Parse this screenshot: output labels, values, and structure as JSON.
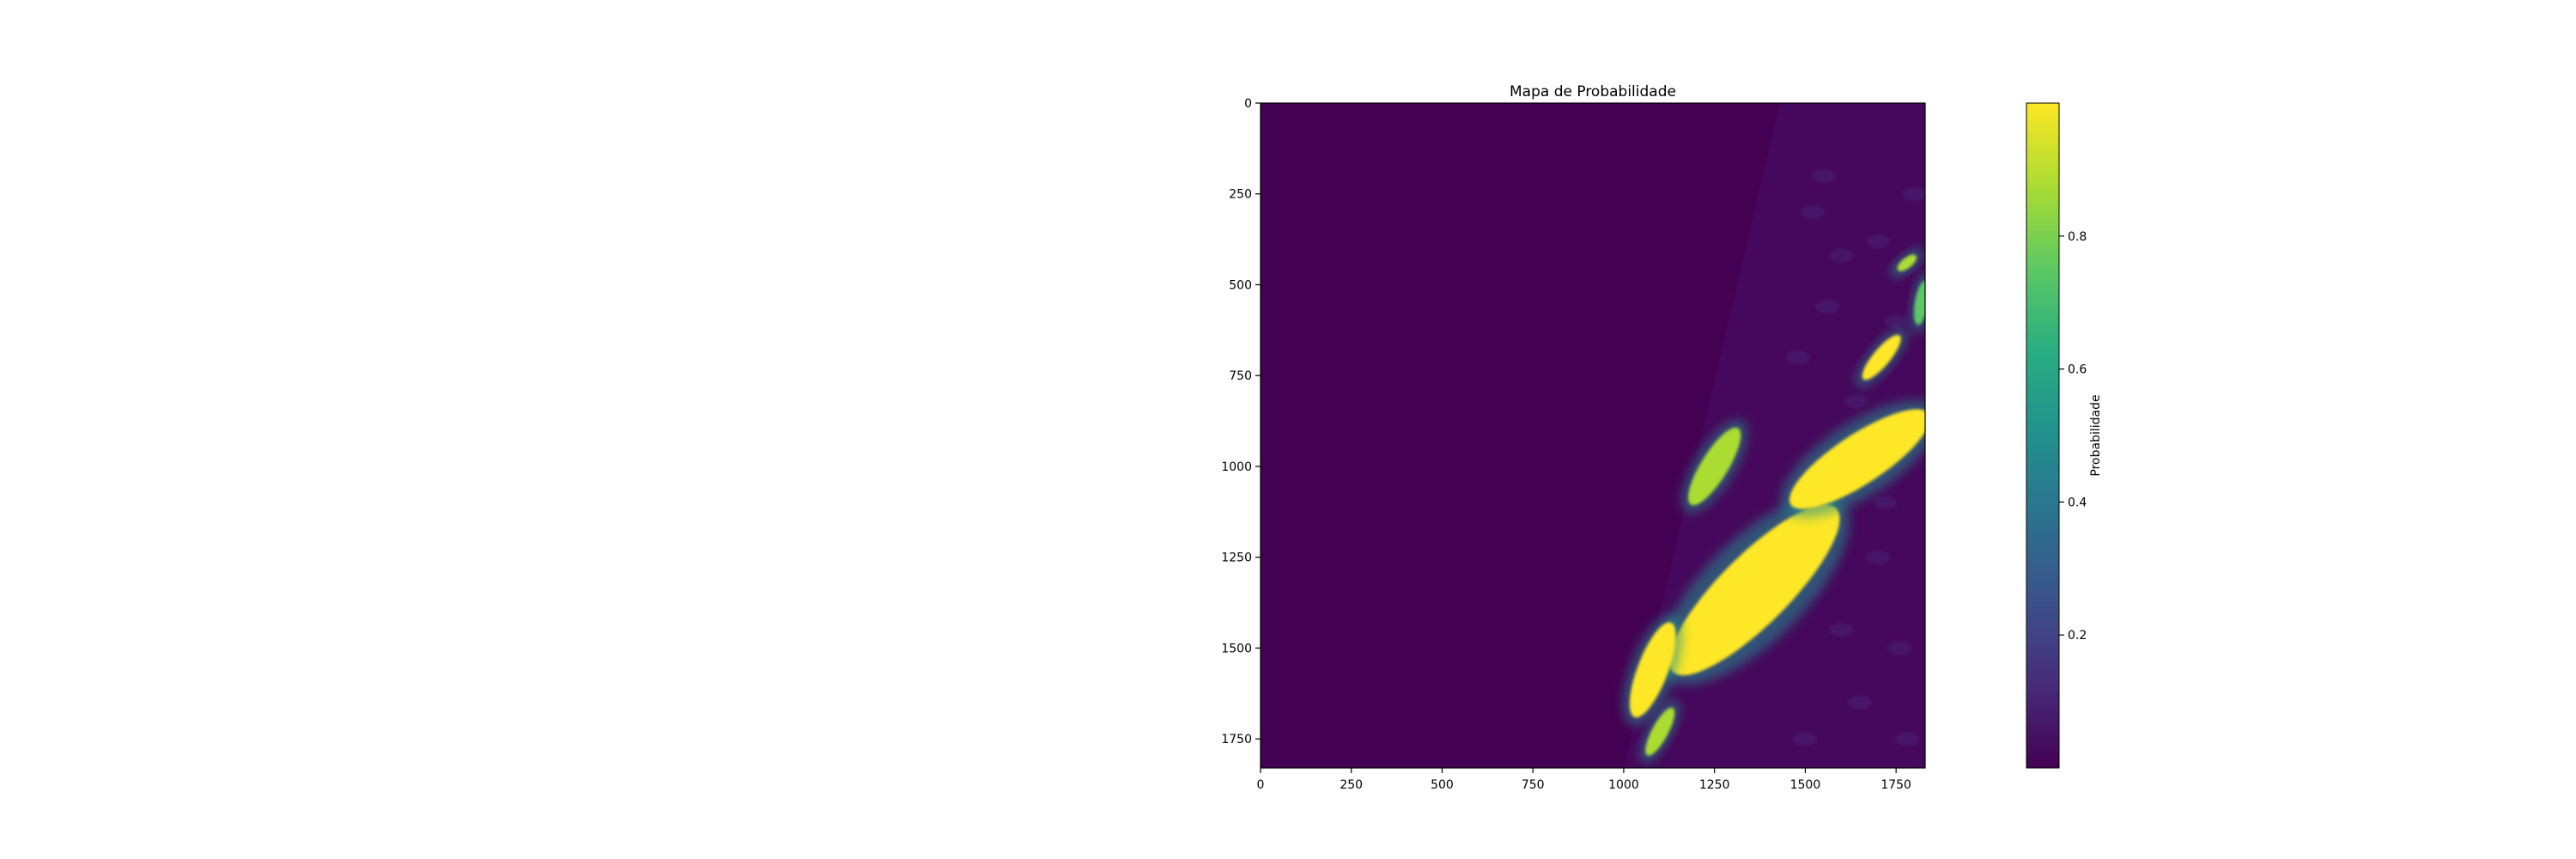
{
  "chart_data": {
    "type": "heatmap",
    "title": "Mapa de Probabilidade",
    "xlabel": "",
    "ylabel": "",
    "xlim": [
      0,
      1830
    ],
    "ylim": [
      1830,
      0
    ],
    "x_ticks": [
      0,
      250,
      500,
      750,
      1000,
      1250,
      1500,
      1750
    ],
    "y_ticks": [
      0,
      250,
      500,
      750,
      1000,
      1250,
      1500,
      1750
    ],
    "colormap": "viridis",
    "grid": false,
    "colorbar": {
      "label": "Probabilidade",
      "range": [
        0.0,
        1.0
      ],
      "ticks": [
        0.2,
        0.4,
        0.6,
        0.8
      ]
    },
    "valid_data_region": {
      "description": "right of diagonal boundary; left part is no-data (probability 0)",
      "boundary": [
        [
          1430,
          0
        ],
        [
          1000,
          1830
        ]
      ]
    },
    "high_probability_regions": [
      {
        "name": "central mass",
        "center": [
          1360,
          1340
        ],
        "extent": [
          [
            1150,
            1600
          ],
          [
            1600,
            1150
          ]
        ],
        "probability": 1.0
      },
      {
        "name": "northern cluster",
        "center": [
          1250,
          1000
        ],
        "extent": [
          [
            1190,
            1100
          ],
          [
            1320,
            890
          ]
        ],
        "probability": 0.9
      },
      {
        "name": "north-east band",
        "center": [
          1650,
          980
        ],
        "extent": [
          [
            1450,
            1100
          ],
          [
            1830,
            850
          ]
        ],
        "probability": 0.95
      },
      {
        "name": "north-east blob",
        "center": [
          1710,
          700
        ],
        "extent": [
          [
            1660,
            760
          ],
          [
            1760,
            640
          ]
        ],
        "probability": 1.0
      },
      {
        "name": "top-right small blob",
        "center": [
          1780,
          440
        ],
        "extent": [
          [
            1760,
            460
          ],
          [
            1810,
            420
          ]
        ],
        "probability": 0.9
      },
      {
        "name": "edge patch",
        "center": [
          1820,
          550
        ],
        "extent": [
          [
            1810,
            620
          ],
          [
            1830,
            500
          ]
        ],
        "probability": 0.8
      },
      {
        "name": "south-west streaks",
        "center": [
          1080,
          1560
        ],
        "extent": [
          [
            1030,
            1690
          ],
          [
            1130,
            1430
          ]
        ],
        "probability": 1.0
      },
      {
        "name": "southern spots",
        "center": [
          1100,
          1730
        ],
        "extent": [
          [
            1060,
            1800
          ],
          [
            1130,
            1670
          ]
        ],
        "probability": 0.9
      }
    ]
  }
}
